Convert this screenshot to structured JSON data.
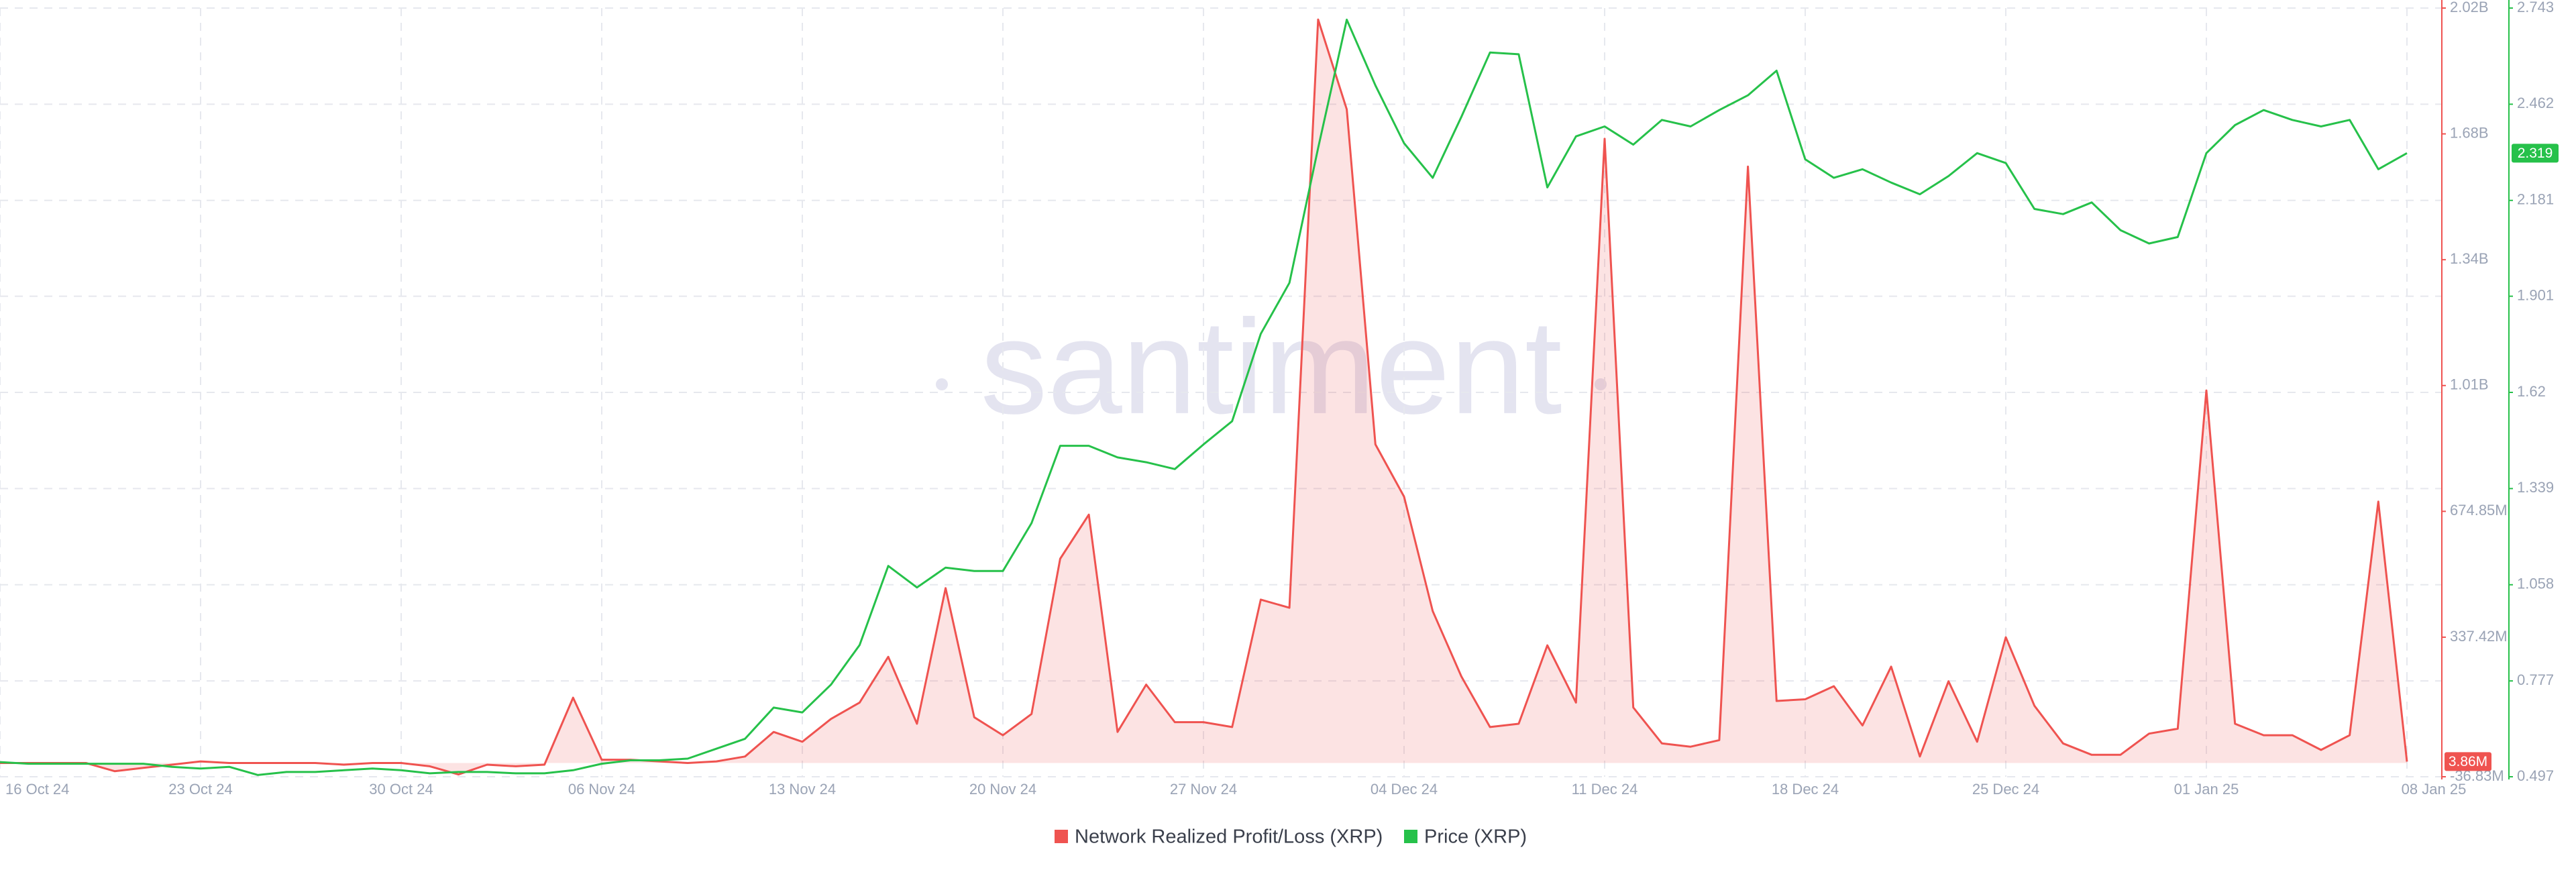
{
  "chart_data": {
    "type": "line",
    "watermark": "santiment",
    "categories": [
      "16 Oct 24",
      null,
      null,
      null,
      null,
      null,
      null,
      "23 Oct 24",
      null,
      null,
      null,
      null,
      null,
      null,
      "30 Oct 24",
      null,
      null,
      null,
      null,
      null,
      null,
      "06 Nov 24",
      null,
      null,
      null,
      null,
      null,
      null,
      "13 Nov 24",
      null,
      null,
      null,
      null,
      null,
      null,
      "20 Nov 24",
      null,
      null,
      null,
      null,
      null,
      null,
      "27 Nov 24",
      null,
      null,
      null,
      null,
      null,
      null,
      "04 Dec 24",
      null,
      null,
      null,
      null,
      null,
      null,
      "11 Dec 24",
      null,
      null,
      null,
      null,
      null,
      null,
      "18 Dec 24",
      null,
      null,
      null,
      null,
      null,
      null,
      "25 Dec 24",
      null,
      null,
      null,
      null,
      null,
      null,
      "01 Jan 25",
      null,
      null,
      null,
      null,
      null,
      null,
      "08 Jan 25"
    ],
    "ylim": [
      -36830000,
      2024540000
    ],
    "yticks": [
      {
        "value": -36830000,
        "label": "-36.83M"
      },
      {
        "value": 337420000,
        "label": "337.42M"
      },
      {
        "value": 674850000,
        "label": "674.85M"
      },
      {
        "value": 1012270000,
        "label": "1.01B"
      },
      {
        "value": 1349700000,
        "label": "1.34B"
      },
      {
        "value": 1687120000,
        "label": "1.68B"
      },
      {
        "value": 2024540000,
        "label": "2.02B"
      }
    ],
    "y2lim": [
      0.497,
      2.743
    ],
    "y2ticks": [
      0.497,
      0.777,
      1.058,
      1.339,
      1.62,
      1.901,
      2.181,
      2.462,
      2.743
    ],
    "grid": true,
    "legend": "bottom",
    "series": [
      {
        "name": "Network Realized Profit/Loss (XRP)",
        "color": "#ef5350",
        "area": true,
        "last_value_label": "3.86M",
        "values": [
          0,
          0,
          0,
          0,
          -21900000,
          -13100000,
          -4400000,
          4400000,
          0,
          0,
          0,
          0,
          -4400000,
          0,
          0,
          -8800000,
          -30700000,
          -4400000,
          -8800000,
          -4400000,
          175300000,
          8800000,
          8800000,
          4400000,
          0,
          4400000,
          17500000,
          83300000,
          57000000,
          118300000,
          162100000,
          284800000,
          105200000,
          468900000,
          122700000,
          74500000,
          131500000,
          547800000,
          666100000,
          83300000,
          210300000,
          109600000,
          109600000,
          96400000,
          438200000,
          416300000,
          1993800000,
          1752800000,
          854500000,
          714300000,
          407500000,
          232200000,
          96400000,
          105200000,
          315500000,
          162100000,
          1673900000,
          149000000,
          52600000,
          43800000,
          61300000,
          1599400000,
          166500000,
          170900000,
          206000000,
          100800000,
          258500000,
          17500000,
          219100000,
          57000000,
          337400000,
          153400000,
          52600000,
          21900000,
          21900000,
          78900000,
          92000000,
          999100000,
          105200000,
          74500000,
          74500000,
          35100000,
          74500000,
          701100000,
          3860000
        ]
      },
      {
        "name": "Price (XRP)",
        "color": "#26c14a",
        "axis": "y2",
        "area": false,
        "values": [
          0.54,
          0.535,
          0.535,
          0.535,
          0.535,
          0.535,
          0.526,
          0.521,
          0.526,
          0.502,
          0.511,
          0.511,
          0.516,
          0.521,
          0.516,
          0.507,
          0.511,
          0.511,
          0.507,
          0.507,
          0.516,
          0.535,
          0.545,
          0.545,
          0.55,
          0.579,
          0.608,
          0.699,
          0.685,
          0.766,
          0.882,
          1.113,
          1.05,
          1.108,
          1.098,
          1.098,
          1.238,
          1.464,
          1.464,
          1.43,
          1.416,
          1.396,
          1.468,
          1.536,
          1.791,
          1.94,
          2.334,
          2.709,
          2.517,
          2.348,
          2.247,
          2.425,
          2.613,
          2.608,
          2.219,
          2.368,
          2.397,
          2.344,
          2.416,
          2.397,
          2.445,
          2.488,
          2.56,
          2.301,
          2.247,
          2.272,
          2.233,
          2.199,
          2.252,
          2.319,
          2.29,
          2.156,
          2.141,
          2.175,
          2.094,
          2.055,
          2.074,
          2.319,
          2.401,
          2.445,
          2.416,
          2.397,
          2.416,
          2.272,
          2.319
        ]
      }
    ]
  }
}
